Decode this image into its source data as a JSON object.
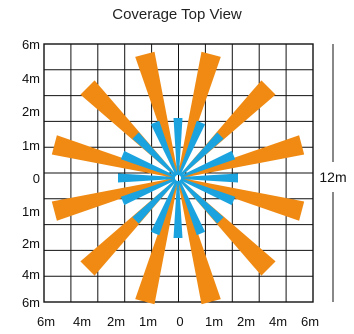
{
  "title": "Coverage Top View",
  "y_tick_labels": [
    "6m",
    "4m",
    "2m",
    "1m",
    "0",
    "1m",
    "2m",
    "4m",
    "6m"
  ],
  "x_tick_labels": [
    "6m",
    "4m",
    "2m",
    "1m",
    "0",
    "1m",
    "2m",
    "4m",
    "6m"
  ],
  "dimension_label": "12m",
  "colors": {
    "grid": "#111111",
    "long_beam": "#f08a12",
    "short_beam": "#1aa3df",
    "text": "#111111"
  },
  "long_beams": {
    "count": 12,
    "offset_deg": 15
  },
  "short_beams": {
    "count": 16,
    "offset_deg": 0
  }
}
